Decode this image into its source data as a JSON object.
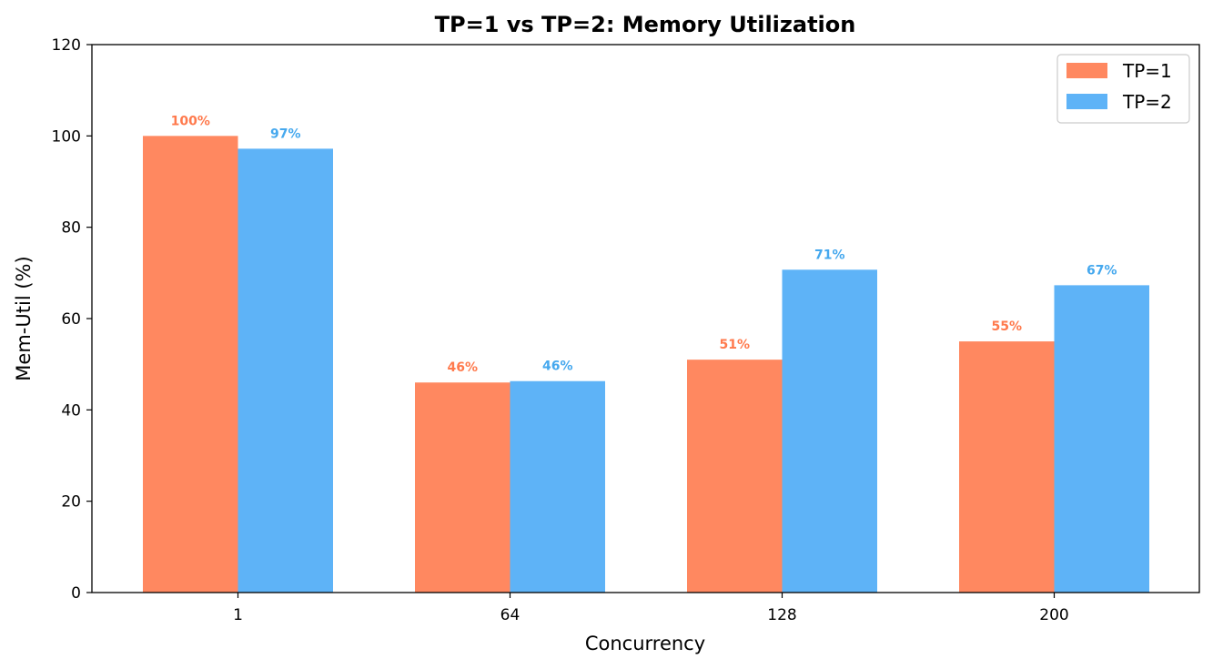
{
  "chart_data": {
    "type": "bar",
    "title": "TP=1 vs TP=2: Memory Utilization",
    "xlabel": "Concurrency",
    "ylabel": "Mem-Util (%)",
    "categories": [
      "1",
      "64",
      "128",
      "200"
    ],
    "ylim": [
      0,
      120
    ],
    "yticks": [
      "0",
      "20",
      "40",
      "60",
      "80",
      "100",
      "120"
    ],
    "grid": false,
    "legend_position": "top-right",
    "series": [
      {
        "name": "TP=1",
        "color": "#FF8860",
        "values": [
          100,
          46,
          51,
          55
        ],
        "labels": [
          "100%",
          "46%",
          "51%",
          "55%"
        ]
      },
      {
        "name": "TP=2",
        "color": "#5EB3F7",
        "values": [
          97.2,
          46.3,
          70.7,
          67.3
        ],
        "labels": [
          "97%",
          "46%",
          "71%",
          "67%"
        ]
      }
    ],
    "label_colors": [
      "#FF7A4D",
      "#45A8EE"
    ]
  }
}
